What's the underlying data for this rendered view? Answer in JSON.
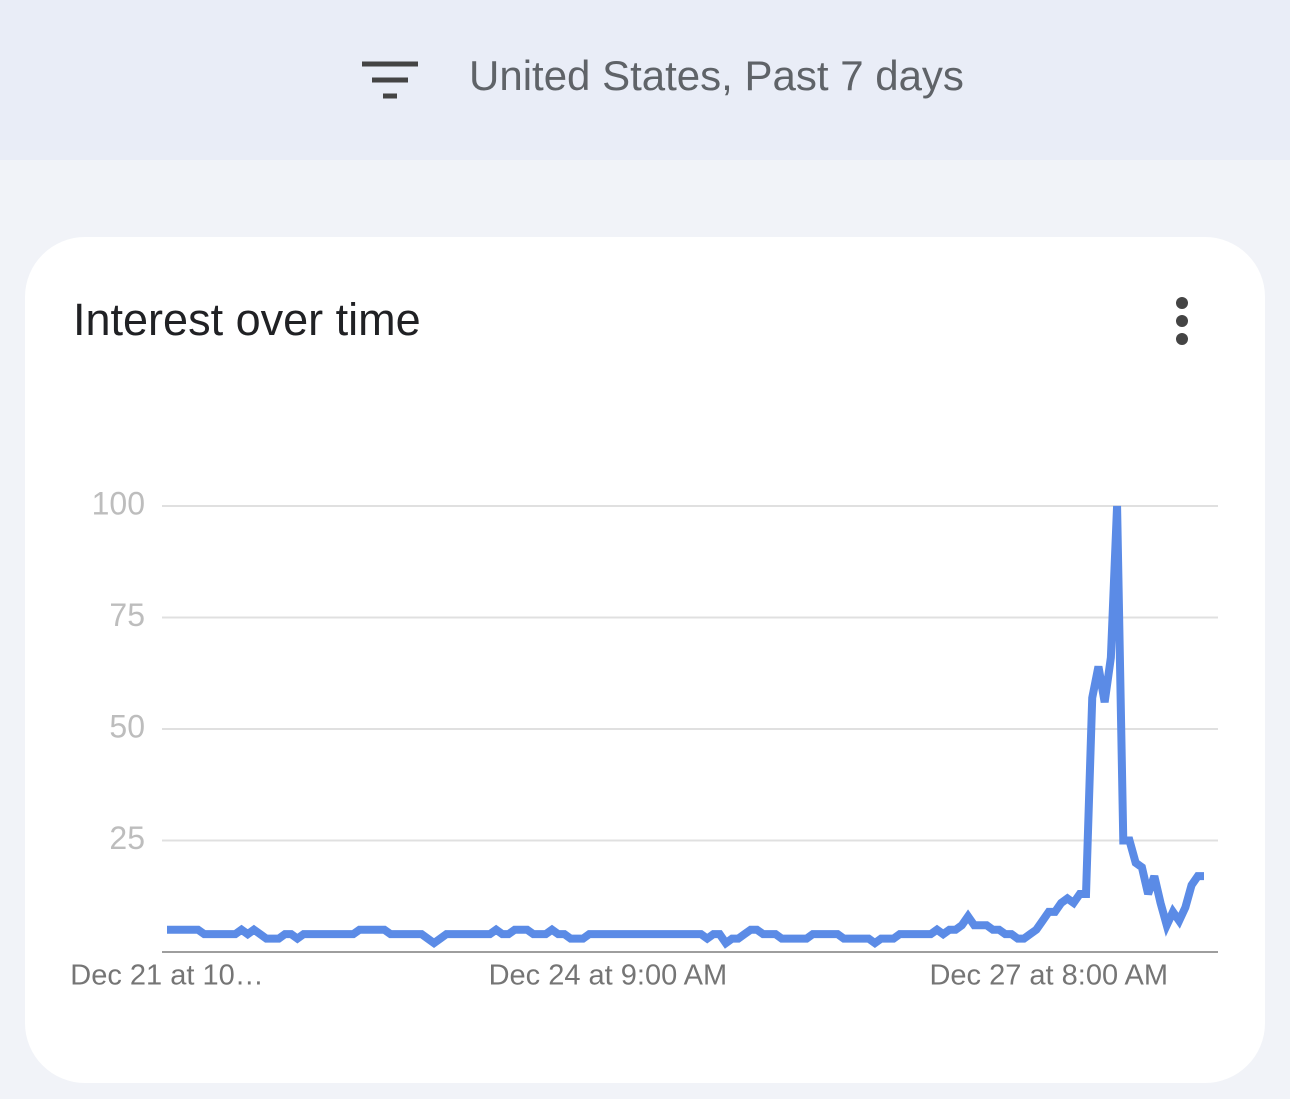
{
  "header": {
    "filter_text": "United States, Past 7 days"
  },
  "chart_data": {
    "type": "line",
    "title": "Interest over time",
    "categories": [
      "Dec 21 at 10…",
      null,
      null,
      null,
      null,
      null,
      null,
      null,
      null,
      null,
      null,
      null,
      null,
      null,
      null,
      null,
      null,
      null,
      null,
      null,
      null,
      null,
      null,
      null,
      null,
      null,
      null,
      null,
      null,
      null,
      null,
      null,
      null,
      null,
      null,
      null,
      null,
      null,
      null,
      null,
      null,
      null,
      null,
      null,
      null,
      null,
      null,
      null,
      null,
      null,
      null,
      null,
      null,
      null,
      null,
      null,
      null,
      null,
      null,
      null,
      null,
      null,
      null,
      null,
      null,
      null,
      null,
      null,
      null,
      null,
      null,
      "Dec 24 at 9:00 AM",
      null,
      null,
      null,
      null,
      null,
      null,
      null,
      null,
      null,
      null,
      null,
      null,
      null,
      null,
      null,
      null,
      null,
      null,
      null,
      null,
      null,
      null,
      null,
      null,
      null,
      null,
      null,
      null,
      null,
      null,
      null,
      null,
      null,
      null,
      null,
      null,
      null,
      null,
      null,
      null,
      null,
      null,
      null,
      null,
      null,
      null,
      null,
      null,
      null,
      null,
      null,
      null,
      null,
      null,
      null,
      null,
      null,
      null,
      null,
      null,
      null,
      null,
      null,
      null,
      null,
      null,
      null,
      null,
      null,
      null,
      "Dec 27 at 8:00 AM",
      null,
      null,
      null,
      null,
      null,
      null,
      null,
      null,
      null,
      null,
      null,
      null,
      null,
      null,
      null,
      null,
      null,
      null,
      null,
      null,
      null,
      null,
      null,
      null,
      null
    ],
    "series": [
      {
        "color": "#5b8be6",
        "values": [
          5,
          5,
          5,
          5,
          5,
          5,
          4,
          4,
          4,
          4,
          4,
          4,
          5,
          4,
          5,
          4,
          3,
          3,
          3,
          4,
          4,
          3,
          4,
          4,
          4,
          4,
          4,
          4,
          4,
          4,
          4,
          5,
          5,
          5,
          5,
          5,
          4,
          4,
          4,
          4,
          4,
          4,
          3,
          2,
          3,
          4,
          4,
          4,
          4,
          4,
          4,
          4,
          4,
          5,
          4,
          4,
          5,
          5,
          5,
          4,
          4,
          4,
          5,
          4,
          4,
          3,
          3,
          3,
          4,
          4,
          4,
          4,
          4,
          4,
          4,
          4,
          4,
          4,
          4,
          4,
          4,
          4,
          4,
          4,
          4,
          4,
          4,
          3,
          4,
          4,
          2,
          3,
          3,
          4,
          5,
          5,
          4,
          4,
          4,
          3,
          3,
          3,
          3,
          3,
          4,
          4,
          4,
          4,
          4,
          3,
          3,
          3,
          3,
          3,
          2,
          3,
          3,
          3,
          4,
          4,
          4,
          4,
          4,
          4,
          5,
          4,
          5,
          5,
          6,
          8,
          6,
          6,
          6,
          5,
          5,
          4,
          4,
          3,
          3,
          4,
          5,
          7,
          9,
          9,
          11,
          12,
          11,
          13,
          13,
          57,
          64,
          56,
          66,
          100,
          25,
          25,
          20,
          19,
          13,
          17,
          11,
          6,
          9,
          7,
          10,
          15,
          17,
          17
        ]
      }
    ],
    "ylim": [
      0,
      100
    ],
    "yticks": [
      25,
      50,
      75,
      100
    ],
    "grid": true
  }
}
